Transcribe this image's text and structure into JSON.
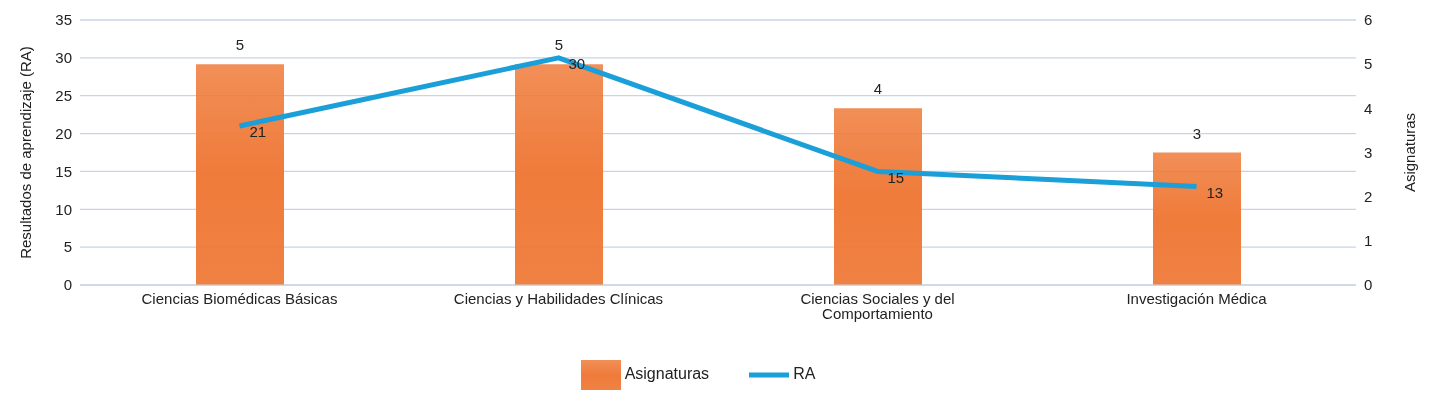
{
  "chart_data": {
    "type": "bar",
    "categories": [
      "Ciencias Biomédicas Básicas",
      "Ciencias y Habilidades Clínicas",
      "Ciencias Sociales y del Comportamiento",
      "Investigación Médica"
    ],
    "series": [
      {
        "name": "Asignaturas",
        "axis": "y2",
        "color": "#ef7b3a",
        "values": [
          5,
          5,
          4,
          3
        ]
      },
      {
        "name": "RA",
        "type": "line",
        "axis": "y",
        "color": "#1a9fd8",
        "values": [
          21,
          30,
          15,
          13
        ]
      }
    ],
    "ylabel": "Resultados de aprendizaje  (RA)",
    "y2label": "Asignaturas",
    "ylim": [
      0,
      35
    ],
    "yticks": [
      0,
      5,
      10,
      15,
      20,
      25,
      30,
      35
    ],
    "y2lim": [
      0,
      6
    ],
    "y2ticks": [
      0,
      1,
      2,
      3,
      4,
      5,
      6
    ],
    "grid": "y",
    "legend": "bottom",
    "data_labels": true,
    "marker": "none",
    "line_style": "solid"
  }
}
